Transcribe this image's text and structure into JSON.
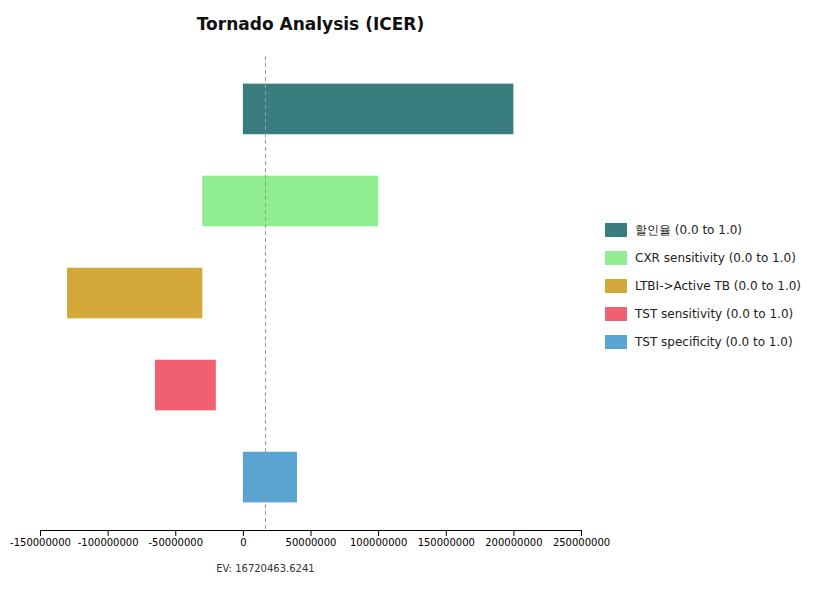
{
  "chart_data": {
    "type": "bar",
    "orientation": "horizontal",
    "title": "Tornado Analysis (ICER)",
    "categories": [
      "할인율 (0.0 to 1.0)",
      "CXR sensitivity (0.0 to 1.0)",
      "LTBI->Active TB (0.0 to 1.0)",
      "TST sensitivity (0.0 to 1.0)",
      "TST specificity (0.0 to 1.0)"
    ],
    "starts": [
      0,
      -30000000,
      -130000000,
      -65000000,
      0
    ],
    "ends": [
      200000000,
      100000000,
      -30000000,
      -20000000,
      40000000
    ],
    "colors": [
      "#3a7d7e",
      "#90ee90",
      "#d4a838",
      "#f06070",
      "#5ba3d0"
    ],
    "reference_line": {
      "value": 16720463.6241,
      "label": "EV: 16720463.6241"
    },
    "xlim": [
      -150000000,
      250000000
    ],
    "xticks": [
      -150000000,
      -100000000,
      -50000000,
      0,
      50000000,
      100000000,
      150000000,
      200000000,
      250000000
    ],
    "grid": false,
    "legend": "right",
    "tick_labels": "x"
  }
}
